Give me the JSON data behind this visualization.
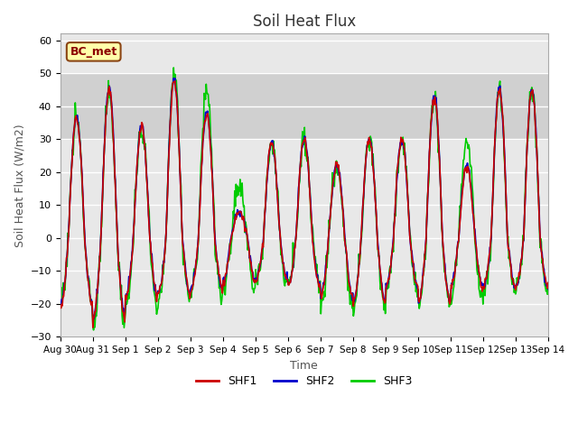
{
  "title": "Soil Heat Flux",
  "xlabel": "Time",
  "ylabel": "Soil Heat Flux (W/m2)",
  "ylim": [
    -30,
    62
  ],
  "yticks": [
    -30,
    -20,
    -10,
    0,
    10,
    20,
    30,
    40,
    50,
    60
  ],
  "shaded_region": [
    30,
    50
  ],
  "figure_bg_color": "#ffffff",
  "plot_bg_color": "#e8e8e8",
  "shaded_color": "#d0d0d0",
  "line_colors": {
    "SHF1": "#cc0000",
    "SHF2": "#0000cc",
    "SHF3": "#00cc00"
  },
  "line_widths": {
    "SHF1": 1.2,
    "SHF2": 1.2,
    "SHF3": 1.2
  },
  "annotation_text": "BC_met",
  "annotation_bg": "#ffffaa",
  "annotation_edge": "#8b4513",
  "grid_color": "#ffffff",
  "xtick_labels": [
    "Aug 30",
    "Aug 31",
    "Sep 1",
    "Sep 2",
    "Sep 3",
    "Sep 4",
    "Sep 5",
    "Sep 6",
    "Sep 7",
    "Sep 8",
    "Sep 9",
    "Sep 10",
    "Sep 11",
    "Sep 12",
    "Sep 13",
    "Sep 14"
  ],
  "day_amps_pos": [
    37,
    45,
    34,
    48,
    38,
    8,
    29,
    30,
    22,
    30,
    30,
    43,
    22,
    45,
    45
  ],
  "day_amps_neg": [
    21,
    25,
    18,
    17,
    16,
    13,
    13,
    15,
    18,
    20,
    15,
    20,
    15,
    15,
    15
  ],
  "shf3_amps_pos": [
    37,
    45,
    33,
    51,
    47,
    16,
    29,
    30,
    22,
    30,
    30,
    43,
    30,
    45,
    45
  ],
  "shf3_amps_neg": [
    20,
    27,
    21,
    18,
    17,
    15,
    14,
    14,
    20,
    21,
    16,
    21,
    17,
    16,
    16
  ]
}
